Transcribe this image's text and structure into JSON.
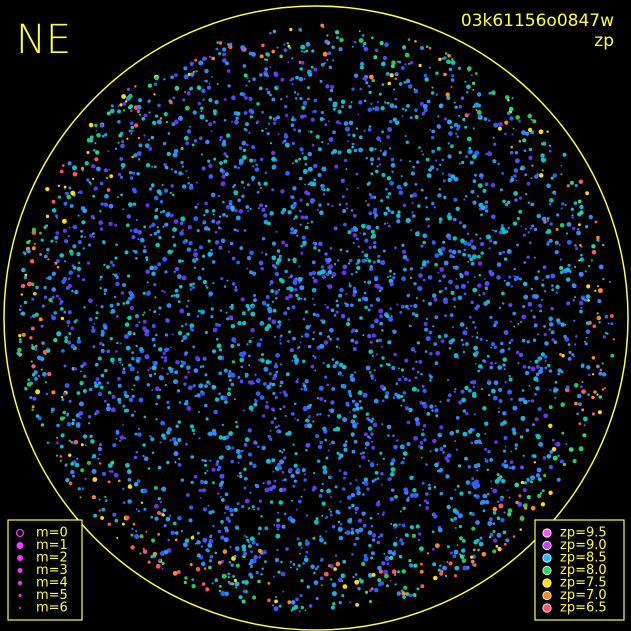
{
  "header": {
    "label": "NE",
    "id": "03k61156o0847w",
    "filter": "zp"
  },
  "legend_m": {
    "color": "#ff33ff",
    "items": [
      "m=0",
      "m=1",
      "m=2",
      "m=3",
      "m=4",
      "m=5",
      "m=6"
    ]
  },
  "legend_zp": {
    "items": [
      {
        "label": "zp=9.5",
        "color": "#ff55ff"
      },
      {
        "label": "zp=9.0",
        "color": "#bb44ff"
      },
      {
        "label": "zp=8.5",
        "color": "#22bbff"
      },
      {
        "label": "zp=8.0",
        "color": "#22dd55"
      },
      {
        "label": "zp=7.5",
        "color": "#ffdd00"
      },
      {
        "label": "zp=7.0",
        "color": "#ff8822"
      },
      {
        "label": "zp=6.5",
        "color": "#ff5566"
      }
    ]
  }
}
